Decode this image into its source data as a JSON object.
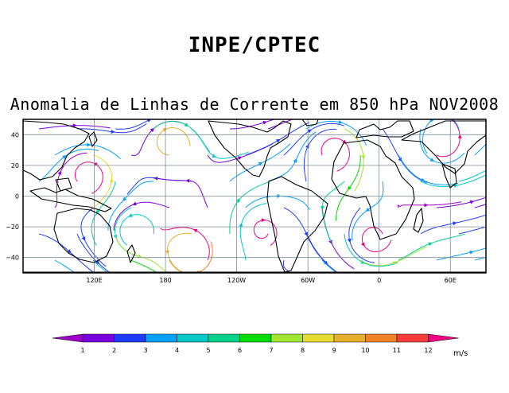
{
  "header": {
    "title": "INPE/CPTEC"
  },
  "map": {
    "title": "Anomalia de Linhas de Corrente em 850 hPa NOV2008",
    "lat_ticks": [
      {
        "value": 40,
        "label": "40"
      },
      {
        "value": 20,
        "label": "20"
      },
      {
        "value": 0,
        "label": "0"
      },
      {
        "value": -20,
        "label": "−20"
      },
      {
        "value": -40,
        "label": "−40"
      }
    ],
    "lon_ticks": [
      {
        "value": 120,
        "label": "120E"
      },
      {
        "value": 180,
        "label": "180"
      },
      {
        "value": 240,
        "label": "120W"
      },
      {
        "value": 300,
        "label": "60W"
      },
      {
        "value": 360,
        "label": "0"
      },
      {
        "value": 420,
        "label": "60E"
      }
    ],
    "lon_range": [
      60,
      450
    ],
    "lat_range": [
      -50,
      50
    ],
    "grid": true
  },
  "colorbar": {
    "unit": "m/s",
    "labels": [
      "1",
      "2",
      "3",
      "4",
      "5",
      "6",
      "7",
      "8",
      "9",
      "10",
      "11",
      "12"
    ],
    "colors": [
      "#a000c8",
      "#7800dc",
      "#1e3cff",
      "#00a0ff",
      "#00c8c8",
      "#00d28c",
      "#00dc00",
      "#a0e632",
      "#e6dc32",
      "#e6af2d",
      "#f08228",
      "#fa3c3c",
      "#f00082"
    ]
  }
}
